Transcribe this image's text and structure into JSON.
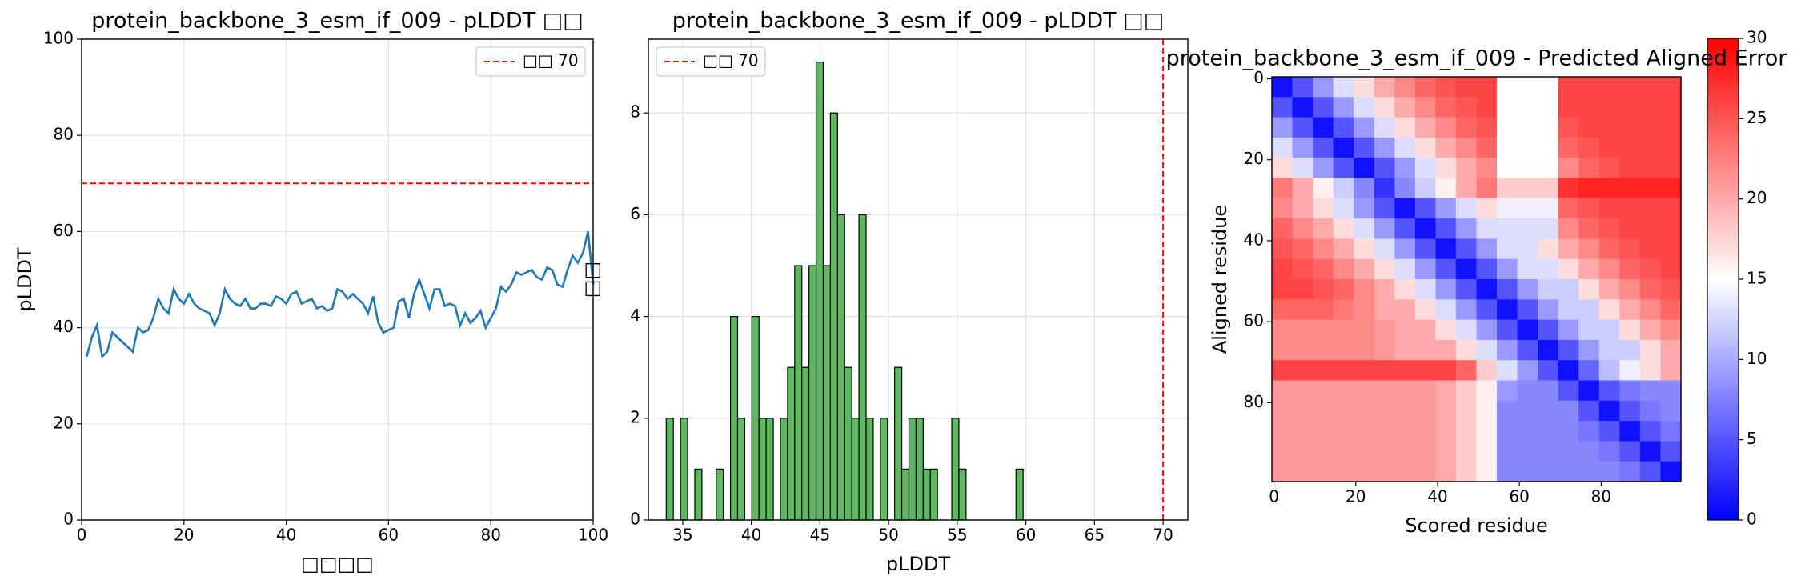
{
  "chart_data": [
    {
      "type": "line",
      "title": "protein_backbone_3_esm_if_009 - pLDDT □□",
      "xlabel": "□□□□",
      "ylabel": "pLDDT",
      "x": [
        1,
        2,
        3,
        4,
        5,
        6,
        7,
        8,
        9,
        10,
        11,
        12,
        13,
        14,
        15,
        16,
        17,
        18,
        19,
        20,
        21,
        22,
        23,
        24,
        25,
        26,
        27,
        28,
        29,
        30,
        31,
        32,
        33,
        34,
        35,
        36,
        37,
        38,
        39,
        40,
        41,
        42,
        43,
        44,
        45,
        46,
        47,
        48,
        49,
        50,
        51,
        52,
        53,
        54,
        55,
        56,
        57,
        58,
        59,
        60,
        61,
        62,
        63,
        64,
        65,
        66,
        67,
        68,
        69,
        70,
        71,
        72,
        73,
        74,
        75,
        76,
        77,
        78,
        79,
        80,
        81,
        82,
        83,
        84,
        85,
        86,
        87,
        88,
        89,
        90,
        91,
        92,
        93,
        94,
        95,
        96,
        97,
        98,
        99,
        100
      ],
      "values": [
        34,
        38,
        40.5,
        34,
        35,
        39,
        38,
        37,
        36,
        35,
        40,
        39,
        39.5,
        42,
        46,
        44,
        43,
        48,
        46,
        45,
        47,
        45,
        44,
        43.5,
        43,
        40.5,
        43,
        48,
        46,
        45,
        44.5,
        46,
        44,
        44,
        45,
        45,
        44.5,
        46.5,
        46,
        45,
        47,
        47.5,
        45,
        45.5,
        46,
        44,
        44.5,
        43.5,
        44,
        48,
        47.5,
        46,
        47,
        46,
        45,
        43,
        46.5,
        41,
        39,
        39.5,
        40,
        45.5,
        46,
        42,
        47,
        50,
        47,
        44,
        48,
        48,
        44.5,
        45,
        44.5,
        40.5,
        43,
        41,
        42,
        43.5,
        40,
        42,
        44,
        48.5,
        47.5,
        49,
        51.5,
        51,
        51.5,
        52,
        50.5,
        50,
        52.5,
        52,
        49,
        48.5,
        52,
        55,
        53.5,
        55.5,
        60,
        49
      ],
      "color": "#1f77b4",
      "reference_line": {
        "name": "□□ 70",
        "value": 70,
        "color": "#ff0000"
      },
      "legend": "upper right",
      "xlim": [
        0,
        100
      ],
      "xticks": [
        0,
        20,
        40,
        60,
        80,
        100
      ],
      "ylim": [
        0,
        100
      ],
      "yticks": [
        0,
        20,
        40,
        60,
        80,
        100
      ],
      "grid": true
    },
    {
      "type": "histogram",
      "title": "protein_backbone_3_esm_if_009 - pLDDT □□",
      "xlabel": "pLDDT",
      "ylabel": "□□",
      "bins": [
        33.8,
        34.32,
        34.84,
        35.36,
        35.88,
        36.4,
        36.92,
        37.44,
        37.96,
        38.48,
        39,
        39.52,
        40.04,
        40.56,
        41.08,
        41.6,
        42.12,
        42.64,
        43.16,
        43.68,
        44.2,
        44.72,
        45.24,
        45.76,
        46.28,
        46.8,
        47.32,
        47.84,
        48.36,
        48.88,
        49.4,
        49.92,
        50.44,
        50.96,
        51.48,
        52,
        52.52,
        53.04,
        53.56,
        54.08,
        54.6,
        55.12,
        55.64,
        56.16,
        56.68,
        57.2,
        57.72,
        58.24,
        58.76,
        59.28,
        59.8
      ],
      "values": [
        2,
        0,
        2,
        0,
        1,
        0,
        0,
        1,
        0,
        4,
        2,
        0,
        4,
        2,
        2,
        0,
        2,
        3,
        5,
        3,
        5,
        9,
        5,
        8,
        6,
        3,
        2,
        6,
        2,
        0,
        2,
        0,
        3,
        1,
        2,
        2,
        1,
        1,
        0,
        0,
        2,
        1,
        0,
        0,
        0,
        0,
        0,
        0,
        0,
        1
      ],
      "color": "#4caf50",
      "reference_line": {
        "name": "□□ 70",
        "value": 70,
        "color": "#ff0000"
      },
      "legend": "upper left",
      "xlim": [
        32.5,
        71.8
      ],
      "xticks": [
        35,
        40,
        45,
        50,
        55,
        60,
        65,
        70
      ],
      "ylim": [
        0,
        9.45
      ],
      "yticks": [
        0,
        2,
        4,
        6,
        8
      ],
      "grid": true
    },
    {
      "type": "heatmap",
      "title": "protein_backbone_3_esm_if_009 - Predicted Aligned Error",
      "xlabel": "Scored residue",
      "ylabel": "Aligned residue",
      "xlim": [
        -0.5,
        99.5
      ],
      "xticks": [
        0,
        20,
        40,
        60,
        80
      ],
      "ylim": [
        99.5,
        -0.5
      ],
      "yticks": [
        0,
        20,
        40,
        60,
        80
      ],
      "colormap": "bwr",
      "colorbar": {
        "lim": [
          0,
          30
        ],
        "ticks": [
          0,
          5,
          10,
          15,
          20,
          25,
          30
        ]
      },
      "z": [
        [
          1,
          5,
          9,
          13,
          17,
          20,
          22,
          24,
          25,
          26,
          26,
          15,
          15,
          15,
          26,
          26,
          26,
          26,
          26,
          26
        ],
        [
          5,
          1,
          5,
          9,
          13,
          17,
          20,
          22,
          24,
          25,
          26,
          15,
          15,
          15,
          26,
          26,
          26,
          26,
          26,
          26
        ],
        [
          9,
          5,
          1,
          5,
          9,
          13,
          17,
          20,
          22,
          24,
          25,
          15,
          15,
          15,
          25,
          26,
          26,
          26,
          26,
          26
        ],
        [
          13,
          9,
          5,
          1,
          5,
          9,
          13,
          17,
          20,
          22,
          24,
          15,
          15,
          15,
          24,
          25,
          26,
          26,
          26,
          26
        ],
        [
          17,
          13,
          9,
          5,
          1,
          5,
          9,
          13,
          17,
          20,
          22,
          15,
          15,
          15,
          22,
          24,
          25,
          26,
          26,
          26
        ],
        [
          23,
          20,
          16,
          12,
          8,
          3,
          8,
          12,
          16,
          20,
          23,
          18,
          18,
          18,
          27,
          28,
          28,
          28,
          28,
          28
        ],
        [
          22,
          20,
          17,
          13,
          9,
          5,
          1,
          5,
          9,
          13,
          17,
          14,
          14,
          14,
          24,
          25,
          26,
          26,
          26,
          26
        ],
        [
          24,
          22,
          20,
          17,
          13,
          9,
          5,
          1,
          5,
          9,
          13,
          13,
          13,
          13,
          22,
          24,
          25,
          26,
          26,
          26
        ],
        [
          25,
          24,
          22,
          20,
          17,
          13,
          9,
          5,
          1,
          5,
          9,
          13,
          13,
          17,
          20,
          22,
          24,
          25,
          26,
          26
        ],
        [
          26,
          25,
          24,
          22,
          20,
          17,
          13,
          9,
          5,
          1,
          5,
          9,
          13,
          13,
          17,
          20,
          22,
          24,
          25,
          26
        ],
        [
          26,
          26,
          25,
          24,
          22,
          20,
          17,
          13,
          9,
          5,
          1,
          5,
          9,
          12,
          12,
          17,
          20,
          22,
          24,
          25
        ],
        [
          24,
          24,
          24,
          23,
          22,
          20,
          20,
          17,
          13,
          9,
          5,
          1,
          5,
          9,
          12,
          12,
          17,
          20,
          22,
          24
        ],
        [
          22,
          22,
          22,
          22,
          22,
          21,
          20,
          20,
          17,
          13,
          9,
          5,
          1,
          5,
          9,
          12,
          12,
          17,
          20,
          22
        ],
        [
          22,
          22,
          22,
          22,
          22,
          21,
          20,
          20,
          20,
          17,
          13,
          9,
          5,
          1,
          5,
          9,
          12,
          12,
          17,
          20
        ],
        [
          26,
          26,
          26,
          26,
          26,
          26,
          26,
          26,
          26,
          24,
          18,
          13,
          9,
          5,
          1,
          6,
          11,
          14,
          17,
          20
        ],
        [
          21,
          21,
          21,
          21,
          21,
          21,
          21,
          21,
          20,
          18,
          16,
          9,
          8,
          8,
          5,
          1,
          5,
          7,
          8,
          8
        ],
        [
          21,
          21,
          21,
          21,
          21,
          21,
          21,
          21,
          20,
          18,
          16,
          8,
          8,
          8,
          8,
          5,
          1,
          5,
          7,
          8
        ],
        [
          21,
          21,
          21,
          21,
          21,
          21,
          21,
          21,
          20,
          18,
          16,
          8,
          8,
          8,
          8,
          7,
          5,
          1,
          5,
          7
        ],
        [
          21,
          21,
          21,
          21,
          21,
          21,
          21,
          21,
          20,
          18,
          16,
          8,
          8,
          8,
          8,
          8,
          7,
          5,
          1,
          5
        ],
        [
          21,
          21,
          21,
          21,
          21,
          21,
          21,
          21,
          20,
          18,
          16,
          8,
          8,
          8,
          8,
          8,
          8,
          7,
          5,
          1
        ]
      ]
    }
  ]
}
